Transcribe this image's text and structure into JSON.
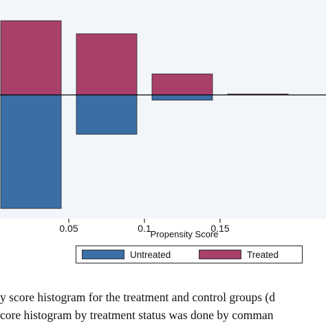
{
  "chart_data": {
    "type": "bar",
    "title": "",
    "xlabel": "Propensity Score",
    "ylabel": "",
    "xlim": [
      0.0,
      0.16
    ],
    "ylim": [
      -13.5,
      8.5
    ],
    "grid": false,
    "legend_position": "bottom",
    "bin_edges": [
      [
        0.005,
        0.045
      ],
      [
        0.055,
        0.095
      ],
      [
        0.105,
        0.145
      ],
      [
        0.155,
        0.195
      ]
    ],
    "series": [
      {
        "name": "Untreated",
        "color": "#3a6ea5",
        "values": [
          -13.0,
          -4.5,
          -0.6,
          0
        ]
      },
      {
        "name": "Treated",
        "color": "#a8406a",
        "values": [
          8.5,
          7.0,
          2.4,
          0.1
        ]
      }
    ],
    "x_ticks": [
      {
        "value": 0.05,
        "label": "0.05"
      },
      {
        "value": 0.1,
        "label": "0.1"
      },
      {
        "value": 0.15,
        "label": "0.15"
      }
    ]
  },
  "legend": [
    {
      "label": "Untreated",
      "color": "#3a6ea5"
    },
    {
      "label": "Treated",
      "color": "#a8406a"
    }
  ],
  "caption": {
    "line1": "y score histogram for the treatment and control groups (d",
    "line2": "core histogram by treatment status was done by comman"
  }
}
